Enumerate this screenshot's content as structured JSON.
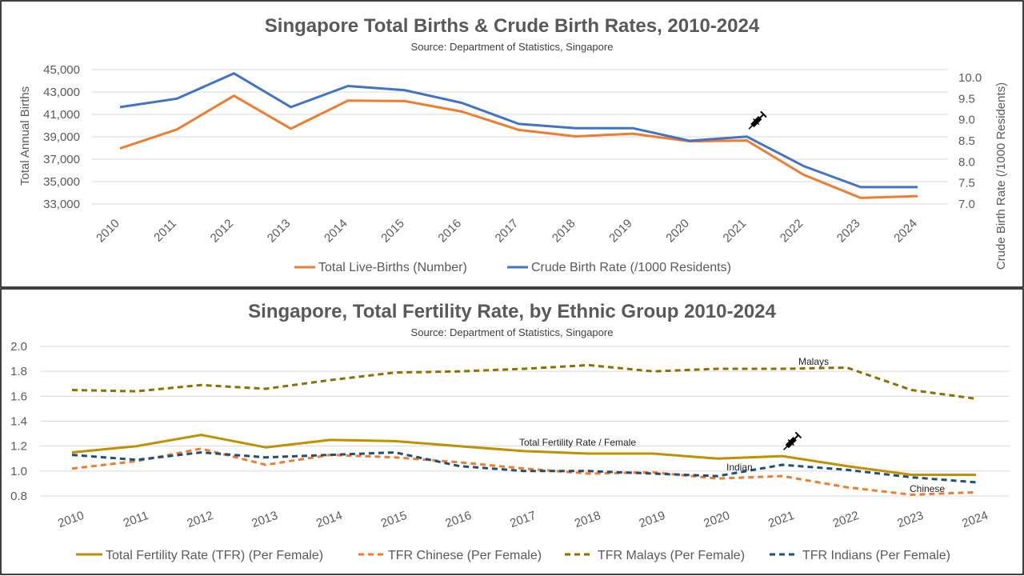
{
  "colors": {
    "orange": "#ED7D31",
    "blue": "#4472C4",
    "gold": "#BF9000",
    "olive": "#8A7000",
    "navy": "#1F4E79",
    "grid": "#D9D9D9",
    "text": "#595959"
  },
  "icons": [
    "syringe-icon"
  ],
  "chart_data": [
    {
      "type": "line",
      "title": "Singapore Total Births & Crude Birth Rates, 2010-2024",
      "subtitle": "Source: Department of Statistics, Singapore",
      "ylabel": "Total Annual Births",
      "y2label": "Crude Birth Rate (/1000 Residents)",
      "ylim": [
        33000,
        45000
      ],
      "y2lim": [
        7.0,
        10.0
      ],
      "yticks": [
        "33,000",
        "35,000",
        "37,000",
        "39,000",
        "41,000",
        "43,000",
        "45,000"
      ],
      "y2ticks": [
        "7.0",
        "7.5",
        "8.0",
        "8.5",
        "9.0",
        "9.5",
        "10.0"
      ],
      "categories": [
        "2010",
        "2011",
        "2012",
        "2013",
        "2014",
        "2015",
        "2016",
        "2017",
        "2018",
        "2019",
        "2020",
        "2021",
        "2022",
        "2023",
        "2024"
      ],
      "series": [
        {
          "name": "Total Live-Births (Number)",
          "axis": "left",
          "values": [
            37967,
            39654,
            42663,
            39720,
            42232,
            42185,
            41251,
            39615,
            39039,
            39279,
            38590,
            38672,
            35605,
            33541,
            33703
          ]
        },
        {
          "name": "Crude Birth Rate (/1000 Residents)",
          "axis": "right",
          "values": [
            9.3,
            9.5,
            10.1,
            9.3,
            9.8,
            9.7,
            9.4,
            8.9,
            8.8,
            8.8,
            8.5,
            8.6,
            7.9,
            7.4,
            7.4
          ]
        }
      ],
      "legend_position": "bottom",
      "grid": true,
      "annotations": [
        {
          "x": "2021",
          "icon": "syringe-icon"
        }
      ]
    },
    {
      "type": "line",
      "title": "Singapore, Total Fertility Rate, by Ethnic Group 2010-2024",
      "subtitle": "Source: Department of Statistics, Singapore",
      "ylim": [
        0.8,
        2.0
      ],
      "yticks": [
        "0.8",
        "1.0",
        "1.2",
        "1.4",
        "1.6",
        "1.8",
        "2.0"
      ],
      "categories": [
        "2010",
        "2011",
        "2012",
        "2013",
        "2014",
        "2015",
        "2016",
        "2017",
        "2018",
        "2019",
        "2020",
        "2021",
        "2022",
        "2023",
        "2024"
      ],
      "series": [
        {
          "name": "Total Fertility Rate (TFR) (Per Female)",
          "label": "Total Fertility Rate / Female",
          "values": [
            1.15,
            1.2,
            1.29,
            1.19,
            1.25,
            1.24,
            1.2,
            1.16,
            1.14,
            1.14,
            1.1,
            1.12,
            1.04,
            0.97,
            0.97
          ]
        },
        {
          "name": "TFR Chinese (Per Female)",
          "label": "Chinese",
          "values": [
            1.02,
            1.08,
            1.18,
            1.05,
            1.13,
            1.11,
            1.07,
            1.02,
            0.98,
            0.99,
            0.94,
            0.96,
            0.87,
            0.81,
            0.83
          ]
        },
        {
          "name": "TFR Malays (Per Female)",
          "label": "Malays",
          "values": [
            1.65,
            1.64,
            1.69,
            1.66,
            1.73,
            1.79,
            1.8,
            1.82,
            1.85,
            1.8,
            1.82,
            1.82,
            1.83,
            1.65,
            1.58
          ]
        },
        {
          "name": "TFR Indians (Per Female)",
          "label": "Indian",
          "values": [
            1.13,
            1.09,
            1.15,
            1.11,
            1.13,
            1.15,
            1.04,
            1.0,
            1.0,
            0.98,
            0.96,
            1.05,
            1.01,
            0.95,
            0.91
          ]
        }
      ],
      "legend_position": "bottom",
      "grid": true,
      "annotations": [
        {
          "x": "2021",
          "icon": "syringe-icon"
        }
      ]
    }
  ]
}
